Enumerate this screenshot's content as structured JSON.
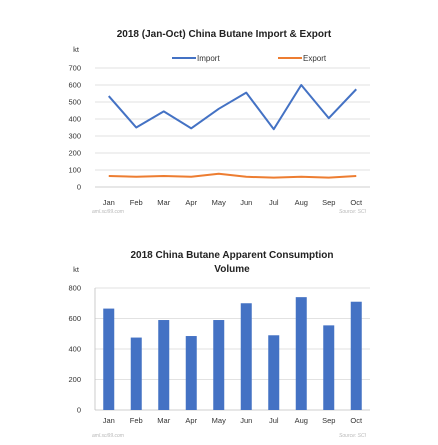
{
  "colors": {
    "import": "#4472c4",
    "export": "#ed7d31",
    "bar": "#4472c4"
  },
  "chart_data": [
    {
      "type": "line",
      "title": "2018 (Jan-Oct) China Butane Import & Export",
      "unit": "kt",
      "categories": [
        "Jan",
        "Feb",
        "Mar",
        "Apr",
        "May",
        "Jun",
        "Jul",
        "Aug",
        "Sep",
        "Oct"
      ],
      "series": [
        {
          "name": "Import",
          "values": [
            535,
            350,
            445,
            345,
            460,
            555,
            340,
            600,
            405,
            575
          ]
        },
        {
          "name": "Export",
          "values": [
            65,
            60,
            65,
            60,
            78,
            60,
            55,
            60,
            55,
            65
          ]
        }
      ],
      "yticks": [
        0,
        100,
        200,
        300,
        400,
        500,
        600,
        700
      ],
      "ylim": [
        0,
        700
      ],
      "grid": true,
      "legend": "top",
      "watermark_left": "aml.sci99.com",
      "source": "Source: SCI"
    },
    {
      "type": "bar",
      "title": "2018 China Butane Apparent Consumption",
      "title_line2": "Volume",
      "unit": "kt",
      "categories": [
        "Jan",
        "Feb",
        "Mar",
        "Apr",
        "May",
        "Jun",
        "Jul",
        "Aug",
        "Sep",
        "Oct"
      ],
      "values": [
        665,
        475,
        590,
        485,
        590,
        700,
        490,
        740,
        555,
        710
      ],
      "yticks": [
        0,
        200,
        400,
        600,
        800
      ],
      "ylim": [
        0,
        800
      ],
      "grid": true,
      "watermark_left": "aml.sci99.com",
      "source": "Source: SCI"
    }
  ]
}
